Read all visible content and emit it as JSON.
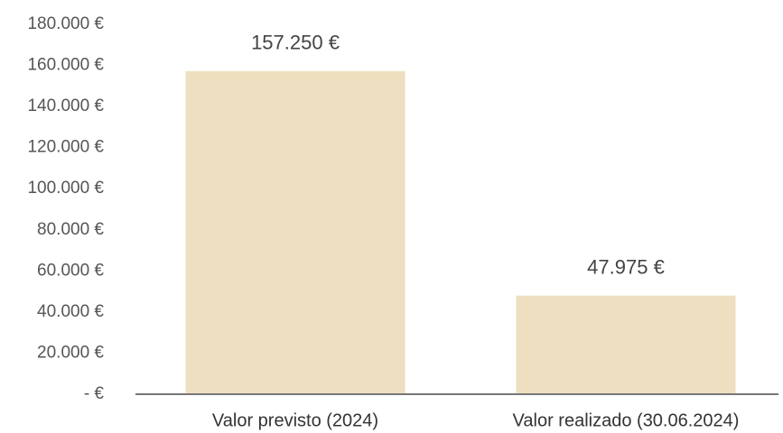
{
  "chart_data": {
    "type": "bar",
    "categories": [
      "Valor previsto (2024)",
      "Valor realizado (30.06.2024)"
    ],
    "values": [
      157250,
      47975
    ],
    "value_labels": [
      "157.250 €",
      "47.975 €"
    ],
    "color": "#eedfc0",
    "ylim": [
      0,
      180000
    ],
    "yticks": [
      {
        "value": 0,
        "label": "-  €"
      },
      {
        "value": 20000,
        "label": "20.000 €"
      },
      {
        "value": 40000,
        "label": "40.000 €"
      },
      {
        "value": 60000,
        "label": "60.000 €"
      },
      {
        "value": 80000,
        "label": "80.000 €"
      },
      {
        "value": 100000,
        "label": "100.000 €"
      },
      {
        "value": 120000,
        "label": "120.000 €"
      },
      {
        "value": 140000,
        "label": "140.000 €"
      },
      {
        "value": 160000,
        "label": "160.000 €"
      },
      {
        "value": 180000,
        "label": "180.000 €"
      }
    ],
    "grid": false
  }
}
